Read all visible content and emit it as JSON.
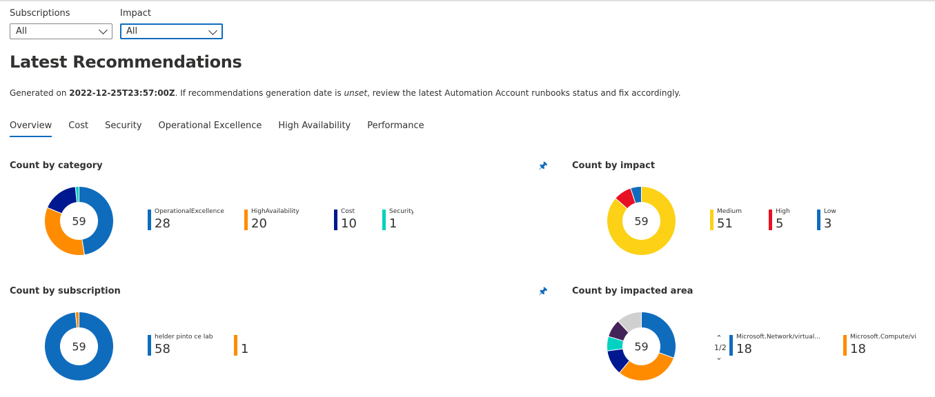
{
  "filters": {
    "subscriptions": {
      "label": "Subscriptions",
      "value": "All"
    },
    "impact": {
      "label": "Impact",
      "value": "All"
    }
  },
  "title": "Latest Recommendations",
  "generated": {
    "prefix": "Generated on ",
    "date": "2022-12-25T23:57:00Z",
    "mid": ". If recommendations generation date is ",
    "unset": "unset",
    "suffix": ", review the latest Automation Account runbooks status and fix accordingly."
  },
  "tabs": [
    {
      "label": "Overview",
      "active": true
    },
    {
      "label": "Cost"
    },
    {
      "label": "Security"
    },
    {
      "label": "Operational Excellence"
    },
    {
      "label": "High Availability"
    },
    {
      "label": "Performance"
    }
  ],
  "icons": {
    "pin": "pin-icon",
    "chevron": "chevron-down-icon"
  },
  "chart_data": [
    {
      "type": "pie",
      "title": "Count by category",
      "total": "59",
      "series": [
        {
          "name": "OperationalExcellence",
          "value": 28,
          "color": "#0f6cbd"
        },
        {
          "name": "HighAvailability",
          "value": 20,
          "color": "#ff8c00"
        },
        {
          "name": "Cost",
          "value": 10,
          "color": "#00188f"
        },
        {
          "name": "Security",
          "value": 1,
          "color": "#00d1c1"
        }
      ]
    },
    {
      "type": "pie",
      "title": "Count by impact",
      "total": "59",
      "series": [
        {
          "name": "Medium",
          "value": 51,
          "color": "#fcd116"
        },
        {
          "name": "High",
          "value": 5,
          "color": "#e81123"
        },
        {
          "name": "Low",
          "value": 3,
          "color": "#0f6cbd"
        }
      ]
    },
    {
      "type": "pie",
      "title": "Count by subscription",
      "total": "59",
      "series": [
        {
          "name": "helder pinto ce lab",
          "value": 58,
          "color": "#0f6cbd"
        },
        {
          "name": "",
          "value": 1,
          "color": "#ff8c00"
        }
      ]
    },
    {
      "type": "pie",
      "title": "Count by impacted area",
      "total": "59",
      "pager": "1/2",
      "series": [
        {
          "name": "Microsoft.Network/virtual...",
          "value": 18,
          "color": "#0f6cbd"
        },
        {
          "name": "Microsoft.Compute/virtua...",
          "value": 18,
          "color": "#ff8c00"
        },
        {
          "name": "",
          "value": 7,
          "color": "#00188f",
          "hidden": true
        },
        {
          "name": "",
          "value": 4,
          "color": "#00d1c1",
          "hidden": true
        },
        {
          "name": "",
          "value": 5,
          "color": "#442359",
          "hidden": true
        },
        {
          "name": "",
          "value": 7,
          "color": "#d0d0d0",
          "hidden": true
        }
      ]
    }
  ]
}
